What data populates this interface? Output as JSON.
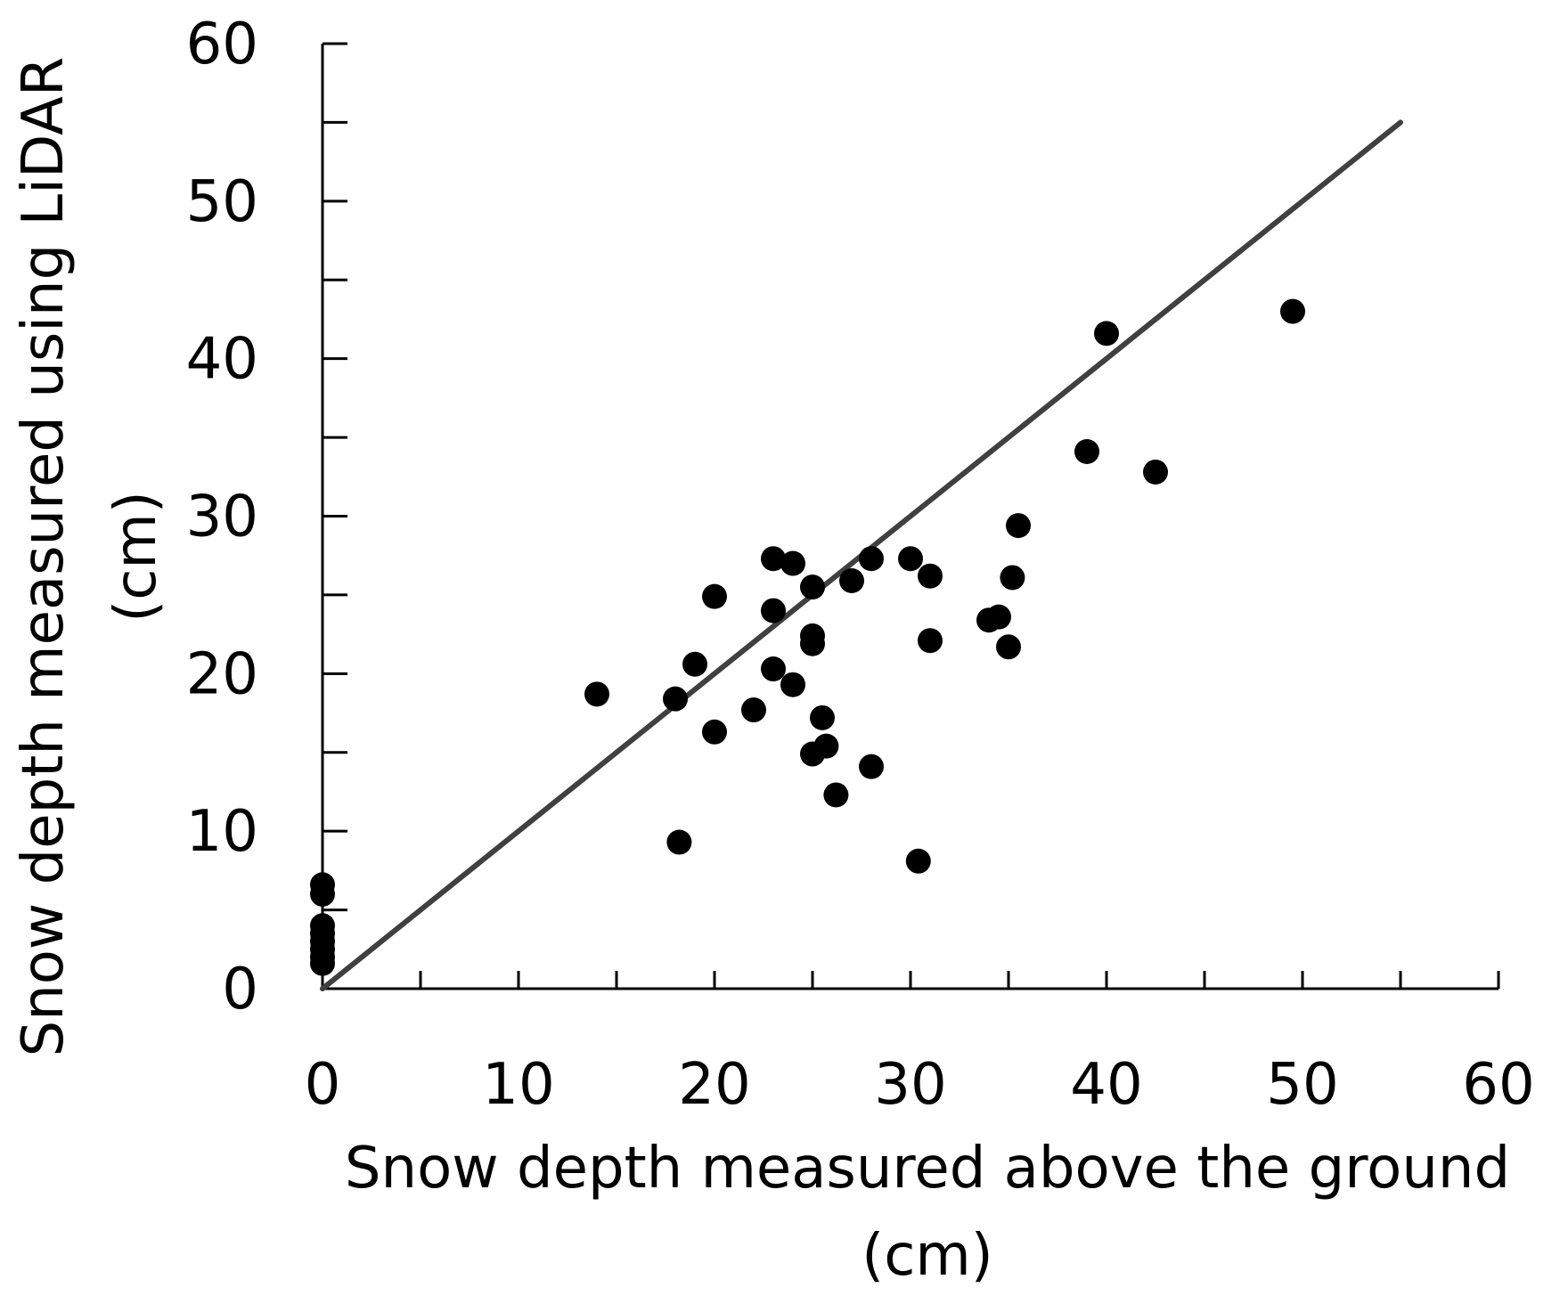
{
  "chart_data": {
    "type": "scatter",
    "title": "",
    "xlabel": [
      "Snow depth measured above the ground",
      "(cm)"
    ],
    "ylabel": [
      "Snow depth measured using  LiDAR",
      "(cm)"
    ],
    "xlim": [
      0,
      60
    ],
    "ylim": [
      0,
      60
    ],
    "x_ticks": [
      0,
      10,
      20,
      30,
      40,
      50,
      60
    ],
    "y_ticks": [
      0,
      10,
      20,
      30,
      40,
      50,
      60
    ],
    "x_tick_labels": [
      "0",
      "10",
      "20",
      "30",
      "40",
      "50",
      "60"
    ],
    "y_tick_labels": [
      "0",
      "10",
      "20",
      "30",
      "40",
      "50",
      "60"
    ],
    "grid": false,
    "legend": "none",
    "marker_color": "#000000",
    "line_color": "#404040",
    "reference_line": {
      "x": [
        0,
        55
      ],
      "y": [
        0,
        55
      ]
    },
    "points": [
      {
        "x": 0,
        "y": 6.6
      },
      {
        "x": 0,
        "y": 6.0
      },
      {
        "x": 0,
        "y": 4.0
      },
      {
        "x": 0,
        "y": 3.5
      },
      {
        "x": 0,
        "y": 3.0
      },
      {
        "x": 0,
        "y": 2.5
      },
      {
        "x": 0,
        "y": 2.0
      },
      {
        "x": 0,
        "y": 1.6
      },
      {
        "x": 14.0,
        "y": 18.7
      },
      {
        "x": 18.0,
        "y": 18.4
      },
      {
        "x": 18.2,
        "y": 9.3
      },
      {
        "x": 19.0,
        "y": 20.6
      },
      {
        "x": 20.0,
        "y": 24.9
      },
      {
        "x": 20.0,
        "y": 16.3
      },
      {
        "x": 22.0,
        "y": 17.7
      },
      {
        "x": 23.0,
        "y": 27.3
      },
      {
        "x": 23.0,
        "y": 24.0
      },
      {
        "x": 23.0,
        "y": 20.3
      },
      {
        "x": 24.0,
        "y": 27.0
      },
      {
        "x": 24.0,
        "y": 19.3
      },
      {
        "x": 25.0,
        "y": 25.5
      },
      {
        "x": 25.0,
        "y": 22.4
      },
      {
        "x": 25.0,
        "y": 21.9
      },
      {
        "x": 25.0,
        "y": 14.9
      },
      {
        "x": 25.5,
        "y": 17.2
      },
      {
        "x": 25.7,
        "y": 15.4
      },
      {
        "x": 26.2,
        "y": 12.3
      },
      {
        "x": 27.0,
        "y": 25.9
      },
      {
        "x": 28.0,
        "y": 27.3
      },
      {
        "x": 28.0,
        "y": 14.1
      },
      {
        "x": 30.0,
        "y": 27.3
      },
      {
        "x": 30.4,
        "y": 8.1
      },
      {
        "x": 31.0,
        "y": 26.2
      },
      {
        "x": 31.0,
        "y": 22.1
      },
      {
        "x": 34.0,
        "y": 23.4
      },
      {
        "x": 34.5,
        "y": 23.6
      },
      {
        "x": 35.0,
        "y": 21.7
      },
      {
        "x": 35.2,
        "y": 26.1
      },
      {
        "x": 35.5,
        "y": 29.4
      },
      {
        "x": 39.0,
        "y": 34.1
      },
      {
        "x": 40.0,
        "y": 41.6
      },
      {
        "x": 42.5,
        "y": 32.8
      },
      {
        "x": 49.5,
        "y": 43.0
      }
    ]
  }
}
